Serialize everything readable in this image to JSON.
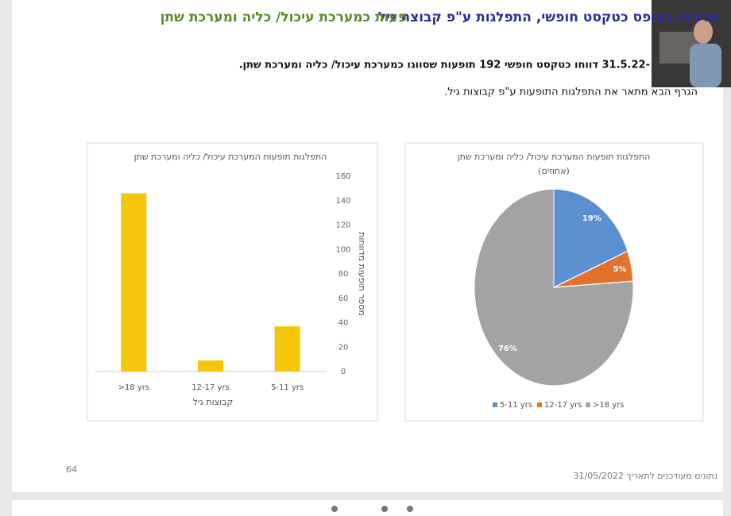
{
  "slide": {
    "title_green": "פעות כמערכת עיכול/ כליה ומערכת שתן",
    "title_blue": "שדווחו בטופס כטקסט חופשי, התפלגות ע\"פ קבוצת גיל",
    "lines": [
      "-31.5.22 דווחו כטקסט חופשי 192 תופעות שסווגו כמערכת עיכול/ כליה ומערכת שתן.",
      "הגרף הבא מתאר את התפלגות התופעות ע\"פ קבוצות גיל."
    ],
    "page_number": "64",
    "footer": "נתונים מעודכנים לתאריך 31/05/2022"
  },
  "chart_data": [
    {
      "type": "bar",
      "title": "התפלגות תופעות המערכת עיכול/ כליה ומערכת שתן",
      "categories": [
        ">18 yrs",
        "12-17 yrs",
        "5-11 yrs"
      ],
      "values": [
        146,
        9,
        37
      ],
      "color": "#f5c50a",
      "ylim": [
        0,
        160
      ],
      "yticks": [
        0,
        20,
        40,
        60,
        80,
        100,
        120,
        140,
        160
      ],
      "y_axis_side": "right",
      "grid": false,
      "ylabel": "מספר תופעות מדווחות",
      "xlabel": "קבוצות גיל"
    },
    {
      "type": "pie",
      "title": "התפלגות תופעות המערכת עיכול/ כליה ומערכת שתן",
      "subtitle": "(אחוזים)",
      "categories": [
        "5-11 yrs",
        "12-17 yrs",
        ">18 yrs"
      ],
      "values": [
        19,
        5,
        76
      ],
      "value_labels": [
        "19%",
        "5%",
        "76%"
      ],
      "colors": [
        "#5b8fcf",
        "#e2722e",
        "#a3a3a3"
      ],
      "legend": "bottom"
    }
  ]
}
